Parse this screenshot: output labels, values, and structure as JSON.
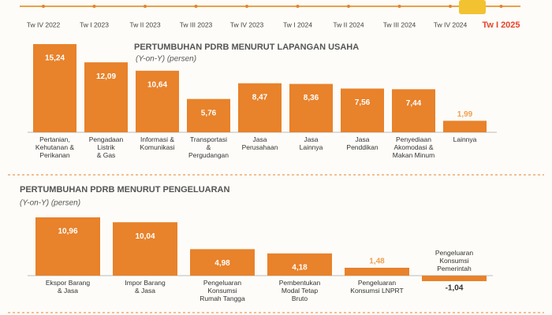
{
  "timeline": {
    "labels": [
      "Tw IV 2022",
      "Tw I 2023",
      "Tw II 2023",
      "Tw III 2023",
      "Tw IV 2023",
      "Tw I 2024",
      "Tw II 2024",
      "Tw III 2024",
      "Tw IV 2024",
      "Tw I 2025"
    ]
  },
  "chart_data": [
    {
      "type": "bar",
      "title": "PERTUMBUHAN PDRB MENURUT LAPANGAN USAHA",
      "subtitle": "(Y-on-Y) (persen)",
      "categories": [
        "Pertanian,\nKehutanan &\nPerikanan",
        "Pengadaan\nListrik\n& Gas",
        "Informasi &\nKomunikasi",
        "Transportasi\n&\nPergudangan",
        "Jasa\nPerusahaan",
        "Jasa\nLainnya",
        "Jasa\nPenddikan",
        "Penyediaan\nAkomodasi &\nMakan Minum",
        "Lainnya"
      ],
      "values": [
        15.24,
        12.09,
        10.64,
        5.76,
        8.47,
        8.36,
        7.56,
        7.44,
        1.99
      ],
      "value_labels": [
        "15,24",
        "12,09",
        "10,64",
        "5,76",
        "8,47",
        "8,36",
        "7,56",
        "7,44",
        "1,99"
      ],
      "color": "#e8822b"
    },
    {
      "type": "bar",
      "title": "PERTUMBUHAN PDRB MENURUT PENGELUARAN",
      "subtitle": "(Y-on-Y) (persen)",
      "categories": [
        "Ekspor Barang\n& Jasa",
        "Impor Barang\n& Jasa",
        "Pengeluaran\nKonsumsi\nRumah Tangga",
        "Pembentukan\nModal Tetap\nBruto",
        "Pengeluaran\nKonsumsi LNPRT",
        "Pengeluaran\nKonsumsi\nPemerintah"
      ],
      "values": [
        10.96,
        10.04,
        4.98,
        4.18,
        1.48,
        -1.04
      ],
      "value_labels": [
        "10,96",
        "10,04",
        "4,98",
        "4,18",
        "1,48",
        "-1,04"
      ],
      "color": "#e8822b"
    }
  ]
}
